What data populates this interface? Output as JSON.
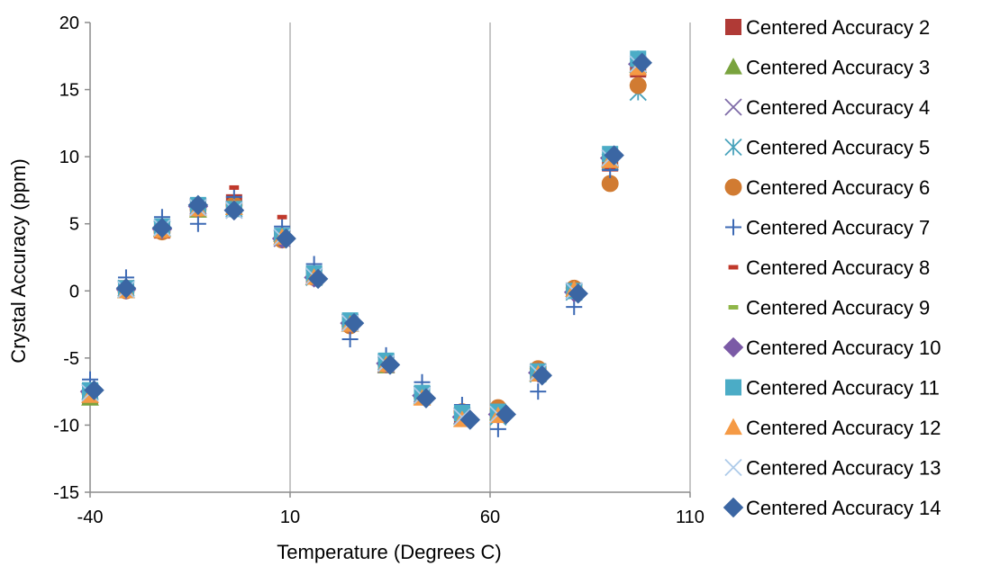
{
  "chart_data": {
    "type": "scatter",
    "title": "",
    "xlabel": "Temperature (Degrees C)",
    "ylabel": "Crystal Accuracy (ppm)",
    "xlim": [
      -40,
      110
    ],
    "ylim": [
      -15,
      20
    ],
    "xticks": [
      -40,
      10,
      60,
      110
    ],
    "yticks": [
      -15,
      -10,
      -5,
      0,
      5,
      10,
      15,
      20
    ],
    "x_tick_labels": [
      "-40",
      "10",
      "60",
      "110"
    ],
    "y_tick_labels": [
      "-15",
      "-10",
      "-5",
      "0",
      "5",
      "10",
      "15",
      "20"
    ],
    "grid": "vertical-major",
    "legend_position": "right",
    "series": [
      {
        "name": "Centered Accuracy 2",
        "marker": "square",
        "color": "#b03a36",
        "x": [
          -40,
          -31,
          -22,
          -13,
          -4,
          8,
          16,
          25,
          34,
          43,
          53,
          62,
          72,
          81,
          90,
          97
        ],
        "y": [
          -7.8,
          0.2,
          4.5,
          6.2,
          6.6,
          4.0,
          1.2,
          -2.4,
          -5.4,
          -7.8,
          -9.2,
          -9.0,
          -6.0,
          0.0,
          9.5,
          16.5
        ]
      },
      {
        "name": "Centered Accuracy 3",
        "marker": "triangle",
        "color": "#79a33e",
        "x": [
          -40,
          -31,
          -22,
          -13,
          -4,
          8,
          16,
          25,
          34,
          43,
          53,
          62,
          72,
          81,
          90,
          97
        ],
        "y": [
          -8.0,
          0.0,
          4.6,
          6.0,
          6.2,
          4.2,
          1.0,
          -2.5,
          -5.6,
          -7.9,
          -9.4,
          -9.1,
          -6.2,
          0.1,
          9.8,
          16.8
        ]
      },
      {
        "name": "Centered Accuracy 4",
        "marker": "x",
        "color": "#7f6ca8",
        "x": [
          -40,
          -31,
          -22,
          -13,
          -4,
          8,
          16,
          25,
          34,
          43,
          53,
          62,
          72,
          81,
          90,
          97
        ],
        "y": [
          -7.6,
          0.1,
          4.7,
          6.3,
          6.0,
          3.9,
          1.1,
          -2.3,
          -5.5,
          -7.7,
          -9.3,
          -9.2,
          -6.1,
          0.0,
          9.9,
          16.9
        ]
      },
      {
        "name": "Centered Accuracy 5",
        "marker": "asterisk",
        "color": "#4aa3bc",
        "x": [
          -40,
          -31,
          -22,
          -13,
          -4,
          8,
          16,
          25,
          34,
          43,
          53,
          62,
          72,
          81,
          90,
          97
        ],
        "y": [
          -7.5,
          0.2,
          4.6,
          6.2,
          6.1,
          4.0,
          1.0,
          -2.4,
          -5.3,
          -7.8,
          -9.5,
          -9.4,
          -6.2,
          -0.1,
          9.6,
          14.8
        ]
      },
      {
        "name": "Centered Accuracy 6",
        "marker": "circle",
        "color": "#d17b32",
        "x": [
          -40,
          -31,
          -22,
          -13,
          -4,
          8,
          16,
          25,
          34,
          43,
          53,
          62,
          72,
          81,
          90,
          97
        ],
        "y": [
          -7.6,
          0.0,
          4.4,
          6.1,
          6.4,
          3.8,
          1.0,
          -2.6,
          -5.5,
          -7.9,
          -9.0,
          -8.7,
          -5.8,
          0.2,
          8.0,
          15.3
        ]
      },
      {
        "name": "Centered Accuracy 7",
        "marker": "plus",
        "color": "#3c69b4",
        "x": [
          -40,
          -31,
          -22,
          -13,
          -4,
          8,
          16,
          25,
          34,
          43,
          53,
          62,
          72,
          81,
          90,
          97
        ],
        "y": [
          -6.6,
          1.0,
          5.5,
          5.0,
          7.0,
          4.8,
          2.0,
          -3.6,
          -4.8,
          -6.8,
          -8.5,
          -10.3,
          -7.5,
          -1.2,
          9.0,
          17.3
        ]
      },
      {
        "name": "Centered Accuracy 8",
        "marker": "dash",
        "color": "#c0392b",
        "x": [
          -40,
          -31,
          -22,
          -13,
          -4,
          8,
          16,
          25,
          34,
          43,
          53,
          62,
          72,
          81,
          90,
          97
        ],
        "y": [
          -7.9,
          0.3,
          4.5,
          6.4,
          7.7,
          5.5,
          1.5,
          -2.2,
          -5.2,
          -7.5,
          -9.0,
          -8.8,
          -5.9,
          0.2,
          9.8,
          16.2
        ]
      },
      {
        "name": "Centered Accuracy 9",
        "marker": "dash",
        "color": "#8fb648",
        "x": [
          -40,
          -31,
          -22,
          -13,
          -4,
          8,
          16,
          25,
          34,
          43,
          53,
          62,
          72,
          81,
          90,
          97
        ],
        "y": [
          -7.7,
          0.0,
          4.4,
          6.0,
          5.9,
          4.1,
          0.9,
          -2.5,
          -5.6,
          -7.9,
          -9.3,
          -9.0,
          -6.0,
          0.3,
          10.0,
          17.0
        ]
      },
      {
        "name": "Centered Accuracy 10",
        "marker": "diamond",
        "color": "#7b5aa6",
        "x": [
          -40,
          -31,
          -22,
          -13,
          -4,
          8,
          16,
          25,
          34,
          43,
          53,
          62,
          72,
          81,
          90,
          97
        ],
        "y": [
          -7.5,
          0.1,
          4.6,
          6.3,
          6.0,
          3.9,
          1.0,
          -2.4,
          -5.4,
          -7.8,
          -9.4,
          -9.2,
          -6.1,
          -0.1,
          9.9,
          16.9
        ]
      },
      {
        "name": "Centered Accuracy 11",
        "marker": "square",
        "color": "#4bacc6",
        "x": [
          -40,
          -31,
          -22,
          -13,
          -4,
          8,
          16,
          25,
          34,
          43,
          53,
          62,
          72,
          81,
          90,
          97
        ],
        "y": [
          -7.4,
          0.2,
          4.8,
          6.4,
          6.1,
          4.1,
          1.3,
          -2.2,
          -5.2,
          -7.6,
          -9.1,
          -9.0,
          -6.0,
          0.0,
          10.2,
          17.3
        ]
      },
      {
        "name": "Centered Accuracy 12",
        "marker": "triangle",
        "color": "#f59a45",
        "x": [
          -40,
          -31,
          -22,
          -13,
          -4,
          8,
          16,
          25,
          34,
          43,
          53,
          62,
          72,
          81,
          90,
          97
        ],
        "y": [
          -7.8,
          0.0,
          4.5,
          6.1,
          6.2,
          4.0,
          1.0,
          -2.5,
          -5.5,
          -8.0,
          -9.6,
          -9.3,
          -6.2,
          0.1,
          9.7,
          16.6
        ]
      },
      {
        "name": "Centered Accuracy 13",
        "marker": "x",
        "color": "#aecbe9",
        "x": [
          -40,
          -31,
          -22,
          -13,
          -4,
          8,
          16,
          25,
          34,
          43,
          53,
          62,
          72,
          81,
          90,
          97
        ],
        "y": [
          -7.6,
          0.1,
          4.7,
          6.2,
          6.0,
          4.0,
          1.1,
          -2.4,
          -5.4,
          -7.8,
          -9.4,
          -9.2,
          -6.1,
          0.0,
          9.9,
          16.9
        ]
      },
      {
        "name": "Centered Accuracy 14",
        "marker": "diamond",
        "color": "#3b66a3",
        "x": [
          -39,
          -31,
          -22,
          -13,
          -4,
          9,
          17,
          26,
          35,
          44,
          55,
          64,
          73,
          82,
          91,
          98
        ],
        "y": [
          -7.4,
          0.2,
          4.7,
          6.4,
          6.0,
          3.9,
          0.9,
          -2.4,
          -5.5,
          -8.0,
          -9.6,
          -9.2,
          -6.3,
          -0.2,
          10.1,
          17.0
        ]
      }
    ]
  }
}
